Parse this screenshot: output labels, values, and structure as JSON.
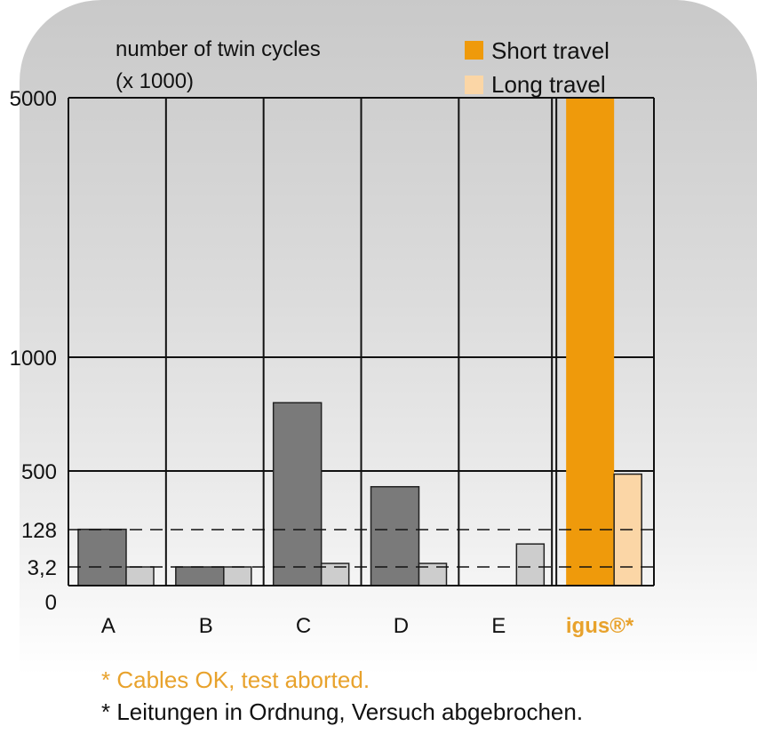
{
  "chart_data": {
    "type": "bar",
    "ylabel_lines": [
      "number of twin cycles",
      "(x 1000)"
    ],
    "yticks": [
      "0",
      "3,2",
      "128",
      "500",
      "1000",
      "5000"
    ],
    "ytick_values": [
      0,
      3.2,
      128,
      500,
      1000,
      5000
    ],
    "reference_lines": [
      3.2,
      128
    ],
    "categories": [
      "A",
      "B",
      "C",
      "D",
      "E",
      "igus®*"
    ],
    "highlight_category": "igus®*",
    "series": [
      {
        "name": "Short travel",
        "values": [
          130,
          3.2,
          800,
          400,
          null,
          5000
        ],
        "color": "#7a7a7a",
        "highlight_color": "#ef9a0b"
      },
      {
        "name": "Long travel",
        "values": [
          3.2,
          3.2,
          15,
          15,
          80,
          480
        ],
        "color": "#cdcdcd",
        "highlight_color": "#fbd6a6"
      }
    ],
    "legend": [
      {
        "label": "Short travel",
        "color": "#ef9a0b"
      },
      {
        "label": "Long travel",
        "color": "#fbd6a6"
      }
    ],
    "legend_position": "top-right",
    "grid": true
  },
  "footnotes": {
    "en": "* Cables OK, test aborted.",
    "de": "* Leitungen in Ordnung, Versuch abgebrochen."
  }
}
